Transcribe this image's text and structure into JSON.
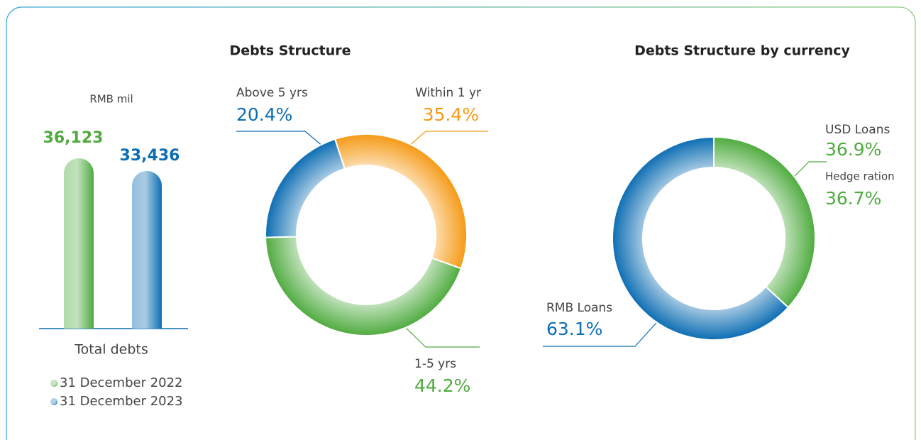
{
  "chart_data": [
    {
      "type": "bar",
      "subtitle": "RMB mil",
      "categories": [
        "Total debts"
      ],
      "series": [
        {
          "name": "31 December 2022",
          "color": "#4fab3f",
          "values": [
            36123
          ],
          "value_labels": [
            "36,123"
          ]
        },
        {
          "name": "31 December 2023",
          "color": "#0c6db3",
          "values": [
            33436
          ],
          "value_labels": [
            "33,436"
          ]
        }
      ]
    },
    {
      "type": "donut",
      "title": "Debts Structure",
      "categories": [
        "Within 1 yr",
        "1-5 yrs",
        "Above 5 yrs"
      ],
      "values": [
        35.4,
        44.2,
        20.4
      ],
      "value_labels": [
        "35.4%",
        "44.2%",
        "20.4%"
      ],
      "colors": [
        "#f59a16",
        "#4fab3f",
        "#0c6db3"
      ]
    },
    {
      "type": "donut",
      "title": "Debts Structure by currency",
      "categories": [
        "USD Loans",
        "RMB Loans"
      ],
      "values": [
        36.9,
        63.1
      ],
      "value_labels": [
        "36.9%",
        "63.1%"
      ],
      "colors": [
        "#4fab3f",
        "#0c6db3"
      ],
      "annotation": {
        "label": "Hedge ration",
        "text": "36.7%"
      }
    }
  ]
}
